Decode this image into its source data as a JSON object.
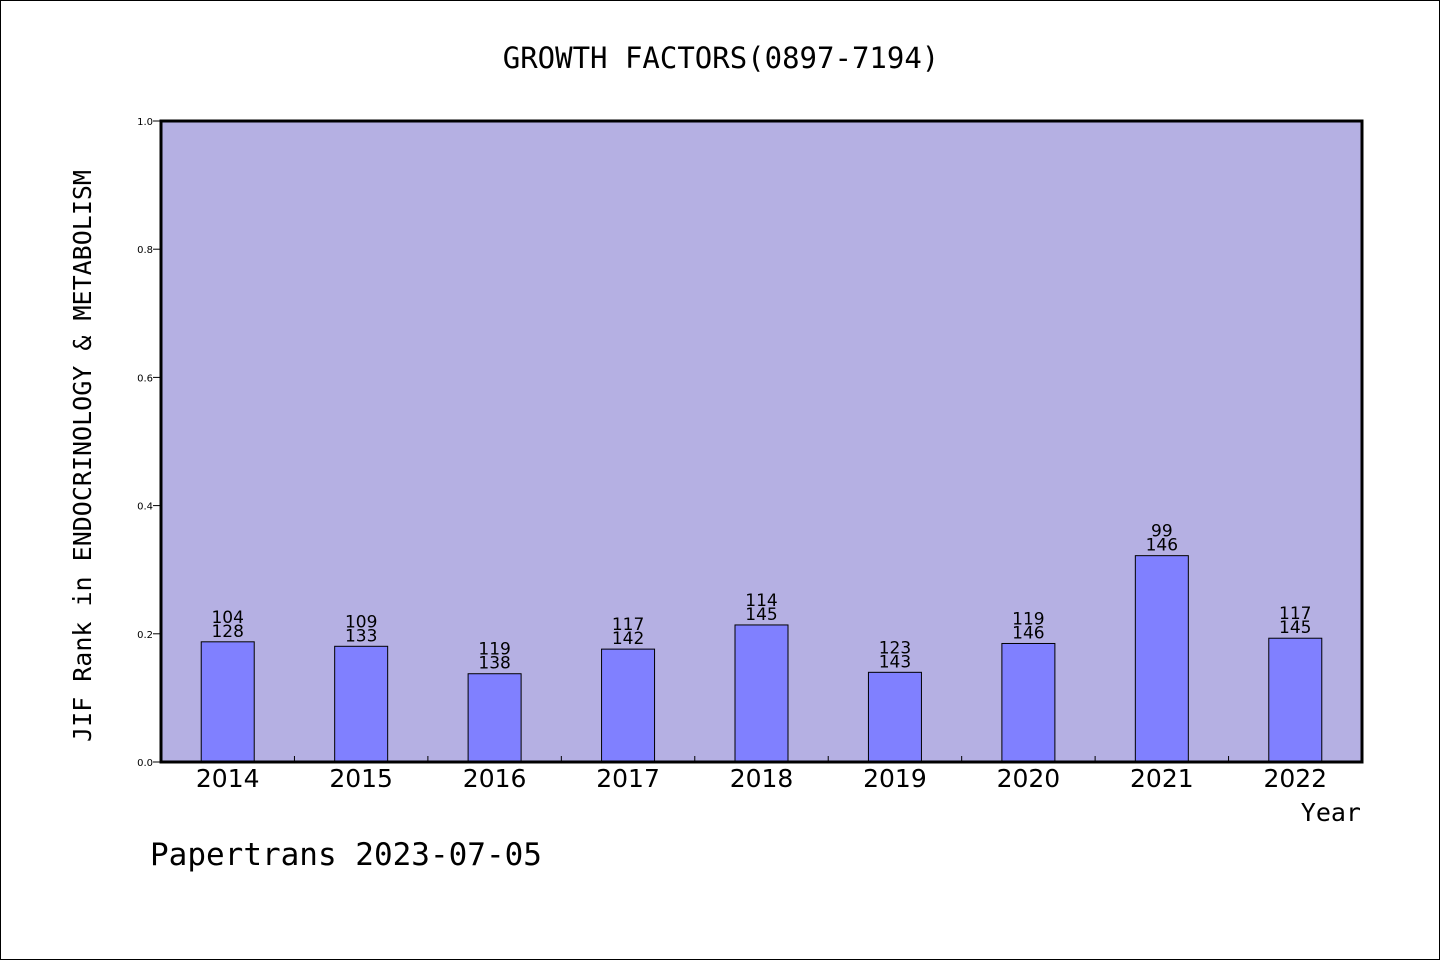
{
  "chart_data": {
    "type": "bar",
    "title": "GROWTH FACTORS(0897-7194)",
    "xlabel": "Year",
    "ylabel": "JIF Rank in ENDOCRINOLOGY & METABOLISM",
    "ylim": [
      0,
      1.0
    ],
    "yticks": [
      "0.0",
      "0.2",
      "0.4",
      "0.6",
      "0.8",
      "1.0"
    ],
    "grid": false,
    "categories": [
      "2014",
      "2015",
      "2016",
      "2017",
      "2018",
      "2019",
      "2020",
      "2021",
      "2022"
    ],
    "values": [
      0.1875,
      0.1805,
      0.1377,
      0.1761,
      0.2138,
      0.1399,
      0.1849,
      0.3219,
      0.1931
    ],
    "rank_labels": [
      "104",
      "109",
      "119",
      "117",
      "114",
      "123",
      "119",
      "99",
      "117"
    ],
    "total_labels": [
      "128",
      "133",
      "138",
      "142",
      "145",
      "143",
      "146",
      "146",
      "145"
    ],
    "plot_background": "#b5b0e3",
    "bar_color": "#8080ff",
    "footer": "Papertrans 2023-07-05"
  }
}
